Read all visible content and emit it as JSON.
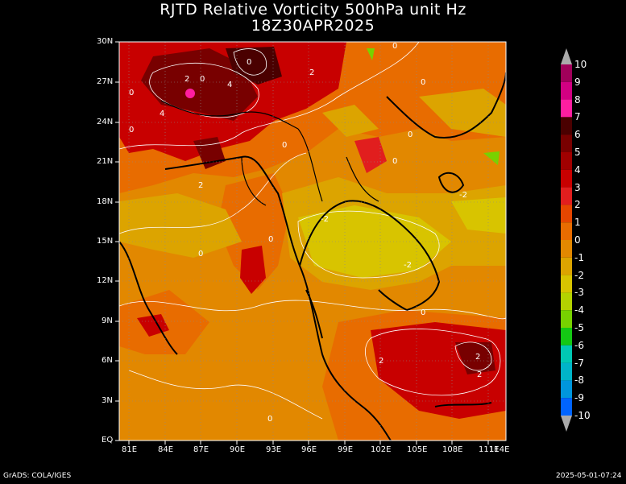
{
  "title": {
    "line1": "RJTD Relative Vorticity 500hPa unit Hz",
    "line2": "18Z30APR2025"
  },
  "map": {
    "lat_labels": [
      "30N",
      "27N",
      "24N",
      "21N",
      "18N",
      "15N",
      "12N",
      "9N",
      "6N",
      "3N",
      "EQ"
    ],
    "lon_labels": [
      "81E",
      "84E",
      "87E",
      "90E",
      "93E",
      "96E",
      "99E",
      "102E",
      "105E",
      "108E",
      "111E",
      "114E"
    ],
    "contour_labels": [
      "0",
      "2",
      "0",
      "4",
      "2",
      "0",
      "2",
      "4",
      "0",
      "0",
      "0",
      "0",
      "-2",
      "-2",
      "0",
      "0",
      "-2",
      "0",
      "2",
      "2",
      "0",
      "2",
      "0",
      "0"
    ]
  },
  "colorbar": {
    "labels": [
      "10",
      "9",
      "8",
      "7",
      "6",
      "5",
      "4",
      "3",
      "2",
      "1",
      "0",
      "-1",
      "-2",
      "-3",
      "-4",
      "-5",
      "-6",
      "-7",
      "-8",
      "-9",
      "-10"
    ],
    "colors": [
      "#a0005a",
      "#d20082",
      "#ff1ea0",
      "#4a0000",
      "#780000",
      "#a00000",
      "#c80000",
      "#e11e1e",
      "#e64600",
      "#e86c00",
      "#e28800",
      "#dca400",
      "#d8c400",
      "#b4d200",
      "#78d200",
      "#14c814",
      "#00c8b4",
      "#00b4c8",
      "#0096dc",
      "#0064ff"
    ]
  },
  "footer": {
    "left": "GrADS: COLA/IGES",
    "right": "2025-05-01-07:24"
  }
}
